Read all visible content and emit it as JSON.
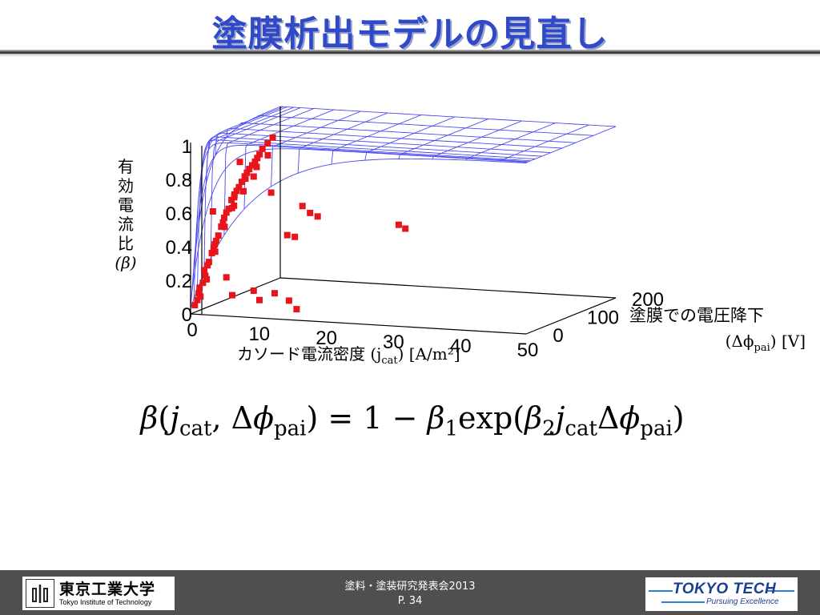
{
  "slide": {
    "title": "塗膜析出モデルの見直し"
  },
  "plot": {
    "ylabel_jp": [
      "有",
      "効",
      "電",
      "流",
      "比"
    ],
    "ylabel_sym": "(β)",
    "xlabel_jp": "カソード電流密度",
    "xlabel_sym": "(j",
    "xlabel_sub": "cat",
    "xlabel_unit": ") [A/m²]",
    "y2label_jp": "塗膜での電圧降下",
    "y2label_sym": "(Δϕ",
    "y2label_sub": "pai",
    "y2label_unit": ") [V]"
  },
  "chart_data": {
    "type": "scatter",
    "x_axis": {
      "ticks": [
        0,
        10,
        20,
        30,
        40,
        50
      ],
      "range": [
        0,
        50
      ]
    },
    "y_axis": {
      "ticks": [
        0,
        100,
        200
      ],
      "range": [
        0,
        200
      ]
    },
    "z_axis": {
      "ticks": [
        0,
        0.2,
        0.4,
        0.6,
        0.8,
        1
      ],
      "range": [
        0,
        1
      ]
    },
    "tick_labels_x": [
      "0",
      "10",
      "20",
      "30",
      "40",
      "50"
    ],
    "tick_labels_y": [
      "0",
      "100",
      "200"
    ],
    "tick_labels_z": [
      "0",
      "0.2",
      "0.4",
      "0.6",
      "0.8",
      "1"
    ],
    "surface_color": "#4a4af0",
    "point_color": "#e8141c",
    "grid": false,
    "points": [
      [
        0.5,
        2,
        0.05
      ],
      [
        0.8,
        3,
        0.08
      ],
      [
        1.0,
        3,
        0.12
      ],
      [
        1.2,
        4,
        0.1
      ],
      [
        1.5,
        5,
        0.18
      ],
      [
        1.8,
        6,
        0.22
      ],
      [
        2.0,
        8,
        0.28
      ],
      [
        2.2,
        8,
        0.3
      ],
      [
        2.5,
        10,
        0.35
      ],
      [
        2.8,
        12,
        0.4
      ],
      [
        3.0,
        12,
        0.42
      ],
      [
        3.2,
        14,
        0.45
      ],
      [
        3.5,
        16,
        0.5
      ],
      [
        3.8,
        18,
        0.55
      ],
      [
        4.0,
        20,
        0.58
      ],
      [
        4.2,
        22,
        0.6
      ],
      [
        4.5,
        24,
        0.65
      ],
      [
        4.8,
        26,
        0.68
      ],
      [
        5.0,
        28,
        0.7
      ],
      [
        5.2,
        30,
        0.72
      ],
      [
        5.5,
        32,
        0.75
      ],
      [
        5.8,
        34,
        0.78
      ],
      [
        6.0,
        36,
        0.8
      ],
      [
        6.2,
        38,
        0.82
      ],
      [
        6.5,
        40,
        0.84
      ],
      [
        6.8,
        42,
        0.86
      ],
      [
        7.0,
        44,
        0.88
      ],
      [
        7.2,
        46,
        0.9
      ],
      [
        7.5,
        48,
        0.93
      ],
      [
        8.0,
        52,
        0.96
      ],
      [
        8.5,
        56,
        0.99
      ],
      [
        1.0,
        5,
        0.15
      ],
      [
        1.5,
        8,
        0.25
      ],
      [
        2.0,
        6,
        0.2
      ],
      [
        2.5,
        14,
        0.38
      ],
      [
        3.0,
        10,
        0.36
      ],
      [
        3.5,
        20,
        0.52
      ],
      [
        4.0,
        16,
        0.5
      ],
      [
        4.5,
        30,
        0.66
      ],
      [
        5.0,
        22,
        0.62
      ],
      [
        5.5,
        40,
        0.76
      ],
      [
        6.0,
        28,
        0.7
      ],
      [
        6.5,
        50,
        0.82
      ],
      [
        7.0,
        36,
        0.78
      ],
      [
        7.5,
        60,
        0.88
      ],
      [
        6.0,
        20,
        0.88
      ],
      [
        3.0,
        5,
        0.6
      ],
      [
        5.5,
        10,
        0.62
      ],
      [
        10.0,
        30,
        0.7
      ],
      [
        14.0,
        40,
        0.62
      ],
      [
        15.0,
        42,
        0.58
      ],
      [
        16.0,
        44,
        0.56
      ],
      [
        12.0,
        36,
        0.45
      ],
      [
        13.0,
        38,
        0.44
      ],
      [
        27.0,
        60,
        0.52
      ],
      [
        28.0,
        60,
        0.5
      ],
      [
        5.0,
        5,
        0.22
      ],
      [
        9.0,
        6,
        0.15
      ],
      [
        12.0,
        8,
        0.14
      ],
      [
        14.0,
        10,
        0.1
      ],
      [
        15.0,
        12,
        0.05
      ],
      [
        10.0,
        4,
        0.1
      ],
      [
        6.0,
        3,
        0.12
      ]
    ]
  },
  "equation": {
    "lhs_beta": "β",
    "lhs_paren_open": "(",
    "lhs_j": "j",
    "lhs_j_sub": "cat",
    "lhs_comma": ", Δ",
    "lhs_phi": "ϕ",
    "lhs_phi_sub": "pai",
    "lhs_paren_close": ")",
    "eq": " = 1 − ",
    "beta1": "β",
    "beta1_sub": "1",
    "exp": "exp(",
    "beta2": "β",
    "beta2_sub": "2",
    "j": "j",
    "j_sub": "cat",
    "delta": "Δ",
    "phi": "ϕ",
    "phi_sub": "pai",
    "close": ")"
  },
  "footer": {
    "logo_name": "東京工業大学",
    "logo_sub": "Tokyo Institute of Technology",
    "event": "塗料・塗装研究発表会2013",
    "page": "P. 34",
    "brand": "TOKYO TECH",
    "brand_sub": "Pursuing Excellence"
  }
}
